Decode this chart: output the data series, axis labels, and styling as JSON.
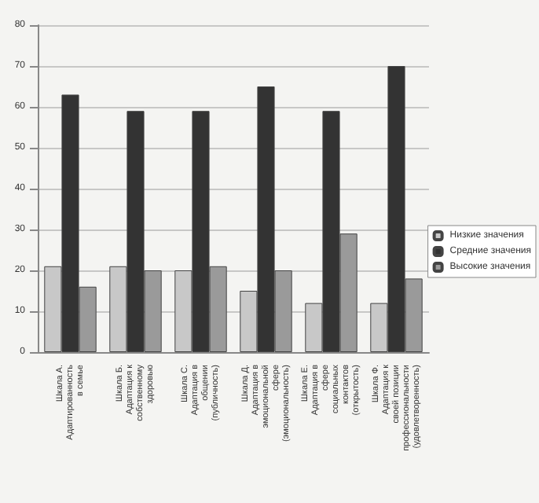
{
  "chart_data": {
    "type": "bar",
    "categories": [
      "Шкала А. Адаптированность в семье",
      "Шкала Б. Адаптация к собственному здоровью",
      "Шкала С. Адаптация в общении (публичность)",
      "Шкала Д. Адаптация в эмоциональной сфере (эмоциональность)",
      "Шкала Е. Адаптация в сфере социальных контактов (открытость)",
      "Шкала Ф. Адаптация к своей позиции профессиональности (удовлетворенность)"
    ],
    "series": [
      {
        "name": "Низкие значения",
        "color": "#c8c8c8",
        "values": [
          21,
          21,
          20,
          15,
          12,
          12
        ]
      },
      {
        "name": "Средние значения",
        "color": "#333333",
        "values": [
          63,
          59,
          59,
          65,
          59,
          70
        ]
      },
      {
        "name": "Высокие значения",
        "color": "#9a9a9a",
        "values": [
          16,
          20,
          21,
          20,
          29,
          18
        ]
      }
    ],
    "ylim": [
      0,
      80
    ],
    "yticks": [
      0,
      10,
      20,
      30,
      40,
      50,
      60,
      70,
      80
    ],
    "grid": "y",
    "legend": "right"
  }
}
